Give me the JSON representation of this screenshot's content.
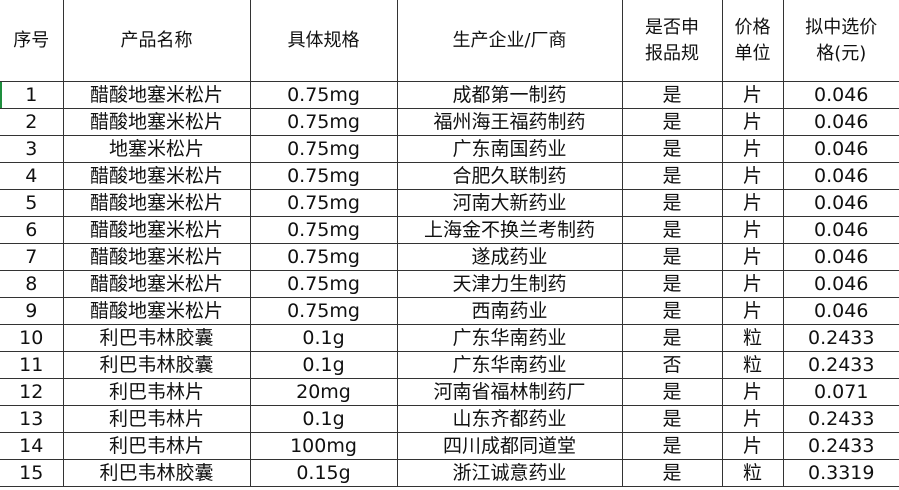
{
  "headers": [
    "序号",
    "产品名称",
    "具体规格",
    "生产企业/厂商",
    "是否申\n报品规",
    "价格\n单位",
    "拟中选价\n格(元)"
  ],
  "rows": [
    [
      "1",
      "醋酸地塞米松片",
      "0.75mg",
      "成都第一制药",
      "是",
      "片",
      "0.046"
    ],
    [
      "2",
      "醋酸地塞米松片",
      "0.75mg",
      "福州海王福药制药",
      "是",
      "片",
      "0.046"
    ],
    [
      "3",
      "地塞米松片",
      "0.75mg",
      "广东南国药业",
      "是",
      "片",
      "0.046"
    ],
    [
      "4",
      "醋酸地塞米松片",
      "0.75mg",
      "合肥久联制药",
      "是",
      "片",
      "0.046"
    ],
    [
      "5",
      "醋酸地塞米松片",
      "0.75mg",
      "河南大新药业",
      "是",
      "片",
      "0.046"
    ],
    [
      "6",
      "醋酸地塞米松片",
      "0.75mg",
      "上海金不换兰考制药",
      "是",
      "片",
      "0.046"
    ],
    [
      "7",
      "醋酸地塞米松片",
      "0.75mg",
      "遂成药业",
      "是",
      "片",
      "0.046"
    ],
    [
      "8",
      "醋酸地塞米松片",
      "0.75mg",
      "天津力生制药",
      "是",
      "片",
      "0.046"
    ],
    [
      "9",
      "醋酸地塞米松片",
      "0.75mg",
      "西南药业",
      "是",
      "片",
      "0.046"
    ],
    [
      "10",
      "利巴韦林胶囊",
      "0.1g",
      "广东华南药业",
      "是",
      "粒",
      "0.2433"
    ],
    [
      "11",
      "利巴韦林胶囊",
      "0.1g",
      "广东华南药业",
      "否",
      "粒",
      "0.2433"
    ],
    [
      "12",
      "利巴韦林片",
      "20mg",
      "河南省福林制药厂",
      "是",
      "片",
      "0.071"
    ],
    [
      "13",
      "利巴韦林片",
      "0.1g",
      "山东齐都药业",
      "是",
      "片",
      "0.2433"
    ],
    [
      "14",
      "利巴韦林片",
      "100mg",
      "四川成都同道堂",
      "是",
      "片",
      "0.2433"
    ],
    [
      "15",
      "利巴韦林胶囊",
      "0.15g",
      "浙江诚意药业",
      "是",
      "粒",
      "0.3319"
    ]
  ],
  "selection_color": "#1e8e3e"
}
